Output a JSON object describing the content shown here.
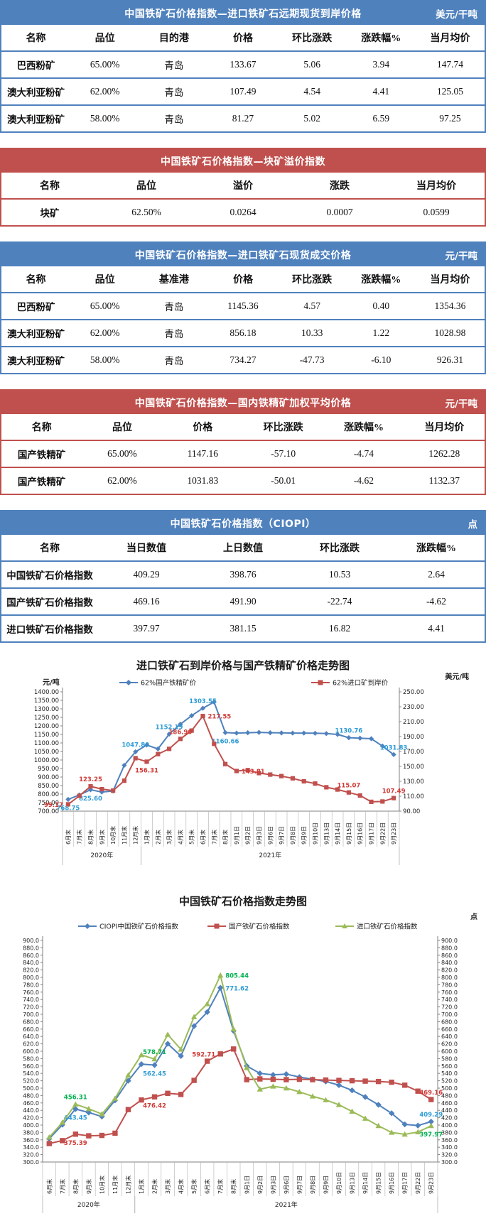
{
  "tables": [
    {
      "theme": "blue",
      "title": "中国铁矿石价格指数—进口铁矿石远期现货到岸价格",
      "unit": "美元/干吨",
      "columns": [
        "名称",
        "品位",
        "目的港",
        "价格",
        "环比涨跌",
        "涨跌幅%",
        "当月均价"
      ],
      "rows": [
        [
          "巴西粉矿",
          "65.00%",
          "青岛",
          "133.67",
          "5.06",
          "3.94",
          "147.74"
        ],
        [
          "澳大利亚粉矿",
          "62.00%",
          "青岛",
          "107.49",
          "4.54",
          "4.41",
          "125.05"
        ],
        [
          "澳大利亚粉矿",
          "58.00%",
          "青岛",
          "81.27",
          "5.02",
          "6.59",
          "97.25"
        ]
      ]
    },
    {
      "theme": "red",
      "title": "中国铁矿石价格指数—块矿溢价指数",
      "unit": "",
      "columns": [
        "名称",
        "品位",
        "溢价",
        "涨跌",
        "当月均价"
      ],
      "rows": [
        [
          "块矿",
          "62.50%",
          "0.0264",
          "0.0007",
          "0.0599"
        ]
      ]
    },
    {
      "theme": "blue",
      "title": "中国铁矿石价格指数—进口铁矿石现货成交价格",
      "unit": "元/干吨",
      "columns": [
        "名称",
        "品位",
        "基准港",
        "价格",
        "环比涨跌",
        "涨跌幅%",
        "当月均价"
      ],
      "rows": [
        [
          "巴西粉矿",
          "65.00%",
          "青岛",
          "1145.36",
          "4.57",
          "0.40",
          "1354.36"
        ],
        [
          "澳大利亚粉矿",
          "62.00%",
          "青岛",
          "856.18",
          "10.33",
          "1.22",
          "1028.98"
        ],
        [
          "澳大利亚粉矿",
          "58.00%",
          "青岛",
          "734.27",
          "-47.73",
          "-6.10",
          "926.31"
        ]
      ]
    },
    {
      "theme": "red",
      "title": "中国铁矿石价格指数—国内铁精矿加权平均价格",
      "unit": "元/干吨",
      "columns": [
        "名称",
        "品位",
        "价格",
        "环比涨跌",
        "涨跌幅%",
        "当月均价"
      ],
      "rows": [
        [
          "国产铁精矿",
          "65.00%",
          "1147.16",
          "-57.10",
          "-4.74",
          "1262.28"
        ],
        [
          "国产铁精矿",
          "62.00%",
          "1031.83",
          "-50.01",
          "-4.62",
          "1132.37"
        ]
      ]
    },
    {
      "theme": "blue",
      "title": "中国铁矿石价格指数（CIOPI）",
      "unit": "点",
      "columns": [
        "名称",
        "当日数值",
        "上日数值",
        "环比涨跌",
        "涨跌幅%"
      ],
      "rows": [
        [
          "中国铁矿石价格指数",
          "409.29",
          "398.76",
          "10.53",
          "2.64"
        ],
        [
          "国产铁矿石价格指数",
          "469.16",
          "491.90",
          "-22.74",
          "-4.62"
        ],
        [
          "进口铁矿石价格指数",
          "397.97",
          "381.15",
          "16.82",
          "4.41"
        ]
      ]
    }
  ],
  "chart_data": [
    {
      "type": "line",
      "title": "进口铁矿石到岸价格与国产铁精矿价格走势图",
      "unit_left": "元/吨",
      "unit_right": "美元/吨",
      "grid": false,
      "legend_position": "top",
      "left_axis": {
        "min": 700,
        "max": 1400,
        "step": 50,
        "decimals": 2
      },
      "right_axis": {
        "min": 90,
        "max": 250,
        "step": 20,
        "decimals": 2
      },
      "categories": [
        "6月末",
        "7月末",
        "8月末",
        "9月末",
        "10月末",
        "11月末",
        "12月末",
        "1月末",
        "2月末",
        "3月末",
        "4月末",
        "5月末",
        "6月末",
        "7月末",
        "8月末",
        "9月1日",
        "9月2日",
        "9月3日",
        "9月6日",
        "9月7日",
        "9月8日",
        "9月9日",
        "9月10日",
        "9月13日",
        "9月14日",
        "9月15日",
        "9月16日",
        "9月17日",
        "9月22日",
        "9月23日"
      ],
      "year_groups": [
        {
          "label": "2020年",
          "from": 0,
          "to": 6
        },
        {
          "label": "2021年",
          "from": 7,
          "to": 29
        }
      ],
      "series": [
        {
          "name": "62%国产铁精矿价",
          "axis": "left",
          "marker": "diamond",
          "color": "#4f81bd",
          "label_color": "#2e9bd6",
          "values": [
            768.75,
            795,
            825.6,
            812,
            818,
            969,
            1047.8,
            1088,
            1065,
            1152.19,
            1210,
            1260,
            1303.55,
            1340,
            1160.66,
            1158,
            1160,
            1162,
            1160,
            1159,
            1158,
            1158,
            1157,
            1155,
            1150,
            1130.76,
            1128,
            1125,
            1081.84,
            1031.83
          ],
          "labels": [
            {
              "i": 0,
              "v": "768.75",
              "pos": "below"
            },
            {
              "i": 2,
              "v": "825.60",
              "pos": "below"
            },
            {
              "i": 6,
              "v": "1047.80",
              "pos": "above"
            },
            {
              "i": 9,
              "v": "1152.19",
              "pos": "above"
            },
            {
              "i": 12,
              "v": "1303.55",
              "pos": "above"
            },
            {
              "i": 14,
              "v": "1160.66",
              "pos": "below"
            },
            {
              "i": 25,
              "v": "1130.76",
              "pos": "above"
            },
            {
              "i": 29,
              "v": "1031.83",
              "pos": "above"
            }
          ]
        },
        {
          "name": "62%进口矿到岸价",
          "axis": "right",
          "marker": "square",
          "color": "#c0504d",
          "label_color": "#d03a36",
          "values": [
            99.17,
            110.5,
            123.25,
            119.5,
            117.5,
            130.8,
            161.0,
            156.31,
            166.5,
            173.5,
            186.9,
            198.0,
            217.55,
            180.3,
            153.1,
            143.81,
            145.0,
            141.0,
            139.0,
            137.0,
            134.0,
            130.0,
            127.0,
            122.0,
            119.0,
            115.07,
            111.0,
            102.5,
            102.95,
            107.49
          ],
          "labels": [
            {
              "i": 0,
              "v": "99.17",
              "pos": "left"
            },
            {
              "i": 2,
              "v": "123.25",
              "pos": "above"
            },
            {
              "i": 7,
              "v": "156.31",
              "pos": "below"
            },
            {
              "i": 10,
              "v": "186.90",
              "pos": "above"
            },
            {
              "i": 12,
              "v": "217.55",
              "pos": "right"
            },
            {
              "i": 15,
              "v": "143.81",
              "pos": "right"
            },
            {
              "i": 25,
              "v": "115.07",
              "pos": "above"
            },
            {
              "i": 29,
              "v": "107.49",
              "pos": "above"
            }
          ]
        }
      ]
    },
    {
      "type": "line",
      "title": "中国铁矿石价格指数走势图",
      "unit_left": "",
      "unit_right": "点",
      "grid": false,
      "legend_position": "top",
      "left_axis": {
        "min": 300,
        "max": 900,
        "step": 20,
        "decimals": 1
      },
      "right_axis": {
        "min": 300,
        "max": 900,
        "step": 20,
        "decimals": 1
      },
      "categories": [
        "6月末",
        "7月末",
        "8月末",
        "9月末",
        "10月末",
        "11月末",
        "12月末",
        "1月末",
        "2月末",
        "3月末",
        "4月末",
        "5月末",
        "6月末",
        "7月末",
        "8月末",
        "9月1日",
        "9月2日",
        "9月3日",
        "9月6日",
        "9月7日",
        "9月8日",
        "9月9日",
        "9月10日",
        "9月13日",
        "9月14日",
        "9月15日",
        "9月16日",
        "9月17日",
        "9月22日",
        "9月23日"
      ],
      "year_groups": [
        {
          "label": "2020年",
          "from": 0,
          "to": 6
        },
        {
          "label": "2021年",
          "from": 7,
          "to": 29
        }
      ],
      "series": [
        {
          "name": "CIOPI中国铁矿石价格指数",
          "axis": "left",
          "marker": "diamond",
          "color": "#4f81bd",
          "label_color": "#2e9bd6",
          "values": [
            363,
            401,
            443.45,
            434,
            423,
            467,
            520,
            565,
            562.45,
            620,
            587,
            668,
            706,
            771.62,
            655,
            560,
            540,
            536,
            538,
            530,
            524,
            518,
            508,
            494,
            476,
            455,
            432,
            402,
            398.76,
            409.29
          ],
          "labels": [
            {
              "i": 2,
              "v": "443.45",
              "pos": "below"
            },
            {
              "i": 8,
              "v": "562.45",
              "pos": "below"
            },
            {
              "i": 13,
              "v": "771.62",
              "pos": "right"
            },
            {
              "i": 29,
              "v": "409.29",
              "pos": "above"
            }
          ]
        },
        {
          "name": "国产铁矿石价格指数",
          "axis": "left",
          "marker": "square",
          "color": "#c0504d",
          "label_color": "#d03a36",
          "values": [
            350,
            358,
            375.39,
            371,
            372,
            378,
            442,
            468,
            476.42,
            486,
            483,
            521,
            573,
            592.71,
            606,
            523,
            525,
            524,
            523,
            524,
            523,
            522,
            521,
            520,
            519,
            518,
            516,
            508,
            491.9,
            469.16
          ],
          "labels": [
            {
              "i": 2,
              "v": "375.39",
              "pos": "below"
            },
            {
              "i": 8,
              "v": "476.42",
              "pos": "below"
            },
            {
              "i": 13,
              "v": "592.71",
              "pos": "left"
            },
            {
              "i": 29,
              "v": "469.16",
              "pos": "above"
            }
          ]
        },
        {
          "name": "进口铁矿石价格指数",
          "axis": "left",
          "marker": "triangle",
          "color": "#9bbb59",
          "label_color": "#00b050",
          "values": [
            367,
            407,
            456.31,
            444,
            430,
            472,
            535,
            590,
            578.71,
            645,
            605,
            693,
            728,
            805.44,
            660,
            555,
            497,
            505,
            500,
            490,
            478,
            468,
            455,
            437,
            418,
            398,
            380,
            375,
            381.15,
            397.97
          ],
          "labels": [
            {
              "i": 2,
              "v": "456.31",
              "pos": "above"
            },
            {
              "i": 8,
              "v": "578.71",
              "pos": "above"
            },
            {
              "i": 13,
              "v": "805.44",
              "pos": "right"
            },
            {
              "i": 29,
              "v": "397.97",
              "pos": "below"
            }
          ]
        }
      ]
    }
  ]
}
